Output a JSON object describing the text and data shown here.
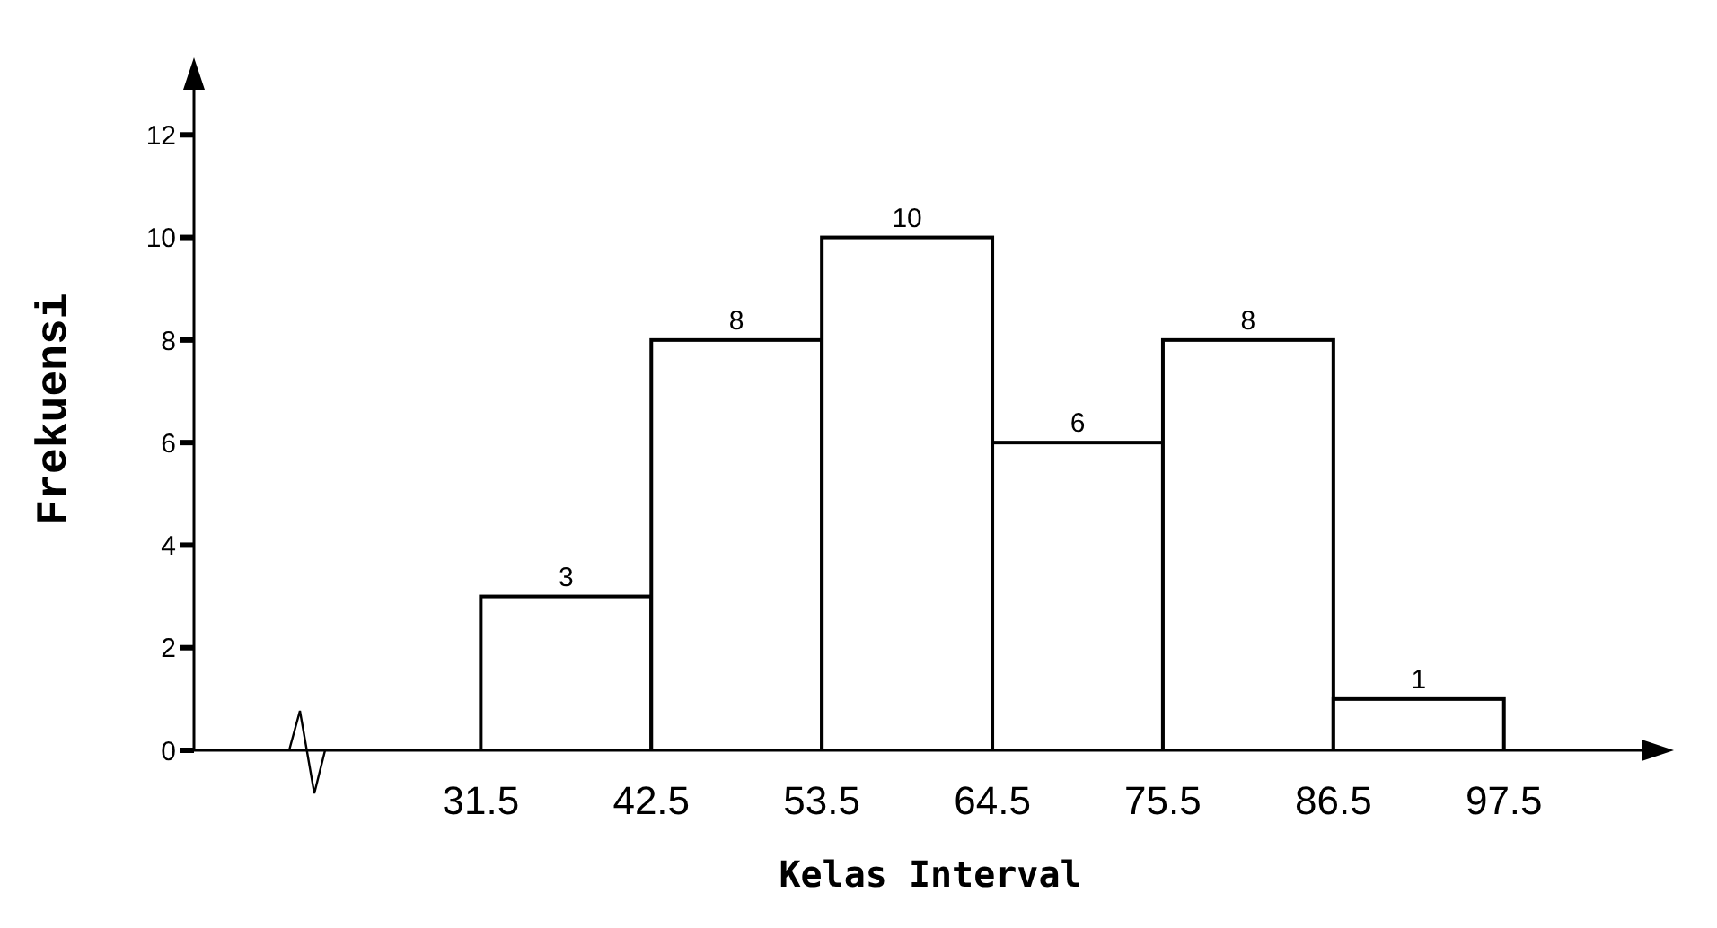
{
  "chart_data": {
    "type": "histogram",
    "xlabel": "Kelas Interval",
    "ylabel": "Frekuensi",
    "bins": [
      31.5,
      42.5,
      53.5,
      64.5,
      75.5,
      86.5,
      97.5
    ],
    "values": [
      3,
      8,
      10,
      6,
      8,
      1
    ],
    "color": "#ffffff",
    "xlim": [
      13,
      108
    ],
    "xticks": [
      31.5,
      42.5,
      53.5,
      64.5,
      75.5,
      86.5,
      97.5
    ],
    "ylim": [
      0,
      13.3
    ],
    "yticks": [
      0,
      2,
      4,
      6,
      8,
      10,
      12
    ],
    "data_labels": true
  }
}
